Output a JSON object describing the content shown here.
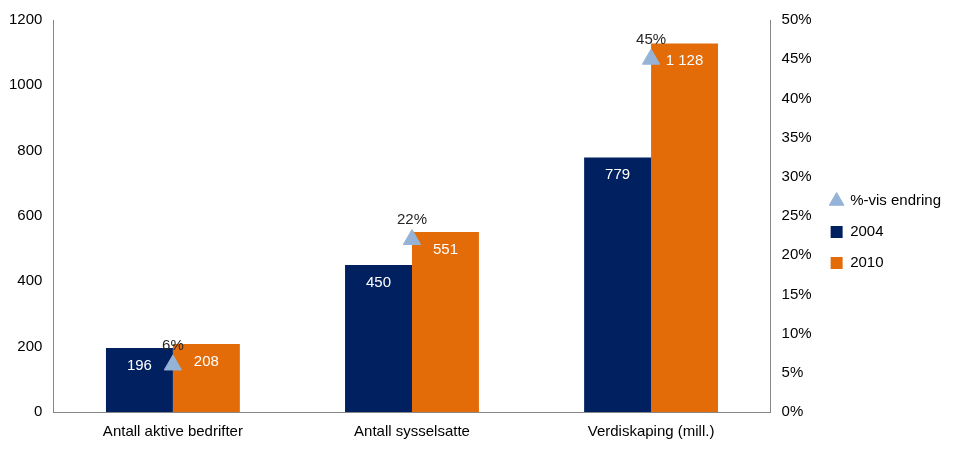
{
  "chart_data": {
    "type": "bar",
    "categories": [
      "Antall aktive bedrifter",
      "Antall sysselsatte",
      "Verdiskaping (mill.)"
    ],
    "series": [
      {
        "name": "2004",
        "color": "#002060",
        "values": [
          196,
          450,
          779
        ]
      },
      {
        "name": "2010",
        "color": "#E36C09",
        "values": [
          208,
          551,
          1128
        ],
        "value_labels": [
          "208",
          "551",
          "1 128"
        ]
      },
      {
        "name": "%-vis endring",
        "type": "line",
        "axis": "y2",
        "color": "#95B3D7",
        "marker": "triangle",
        "line_style": "none",
        "values": [
          6,
          22,
          45
        ],
        "value_labels": [
          "6%",
          "22%",
          "45%"
        ]
      }
    ],
    "ylim": [
      0,
      1200
    ],
    "yticks": [
      0,
      200,
      400,
      600,
      800,
      1000,
      1200
    ],
    "y2lim": [
      0,
      50
    ],
    "y2ticks": [
      {
        "value": 0,
        "label": "0%"
      },
      {
        "value": 5,
        "label": "5%"
      },
      {
        "value": 10,
        "label": "10%"
      },
      {
        "value": 15,
        "label": "15%"
      },
      {
        "value": 20,
        "label": "20%"
      },
      {
        "value": 25,
        "label": "25%"
      },
      {
        "value": 30,
        "label": "30%"
      },
      {
        "value": 35,
        "label": "35%"
      },
      {
        "value": 40,
        "label": "40%"
      },
      {
        "value": 45,
        "label": "45%"
      },
      {
        "value": 50,
        "label": "50%"
      }
    ],
    "grid": false,
    "legend": "right",
    "data_labels": true
  }
}
